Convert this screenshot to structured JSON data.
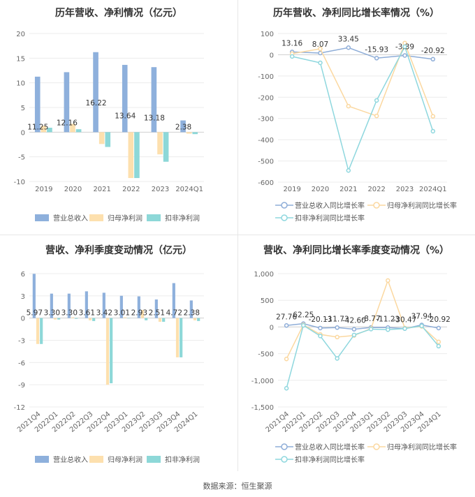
{
  "colors": {
    "revenue": "#8eb0dc",
    "net_profit": "#fde0ae",
    "deducted_profit": "#8dd8d8",
    "revenue_line": "#8eadd8",
    "net_line": "#fbd8a0",
    "deducted_line": "#8ed7de"
  },
  "footer": "数据来源：恒生聚源",
  "chart_data": [
    {
      "type": "bar",
      "title": "历年营收、净利情况（亿元）",
      "categories": [
        "2019",
        "2020",
        "2021",
        "2022",
        "2023",
        "2024Q1"
      ],
      "ylim": [
        -10,
        20
      ],
      "yticks": [
        20,
        15,
        10,
        5,
        0,
        -5,
        -10
      ],
      "grid": true,
      "legend_position": "bottom",
      "series": [
        {
          "name": "营业总收入",
          "color_key": "revenue",
          "values": [
            11.25,
            12.16,
            16.22,
            13.64,
            13.18,
            2.38
          ],
          "labels": [
            "11.25",
            "12.16",
            "16.22",
            "13.64",
            "13.18",
            "2.38"
          ]
        },
        {
          "name": "归母净利润",
          "color_key": "net_profit",
          "values": [
            1.3,
            1.7,
            -2.4,
            -9.3,
            -4.5,
            -0.3
          ]
        },
        {
          "name": "扣非净利润",
          "color_key": "deducted_profit",
          "values": [
            0.9,
            0.6,
            -3.0,
            -9.3,
            -6.0,
            -0.4
          ]
        }
      ]
    },
    {
      "type": "line",
      "title": "历年营收、净利同比增长率情况（%）",
      "categories": [
        "2019",
        "2020",
        "2021",
        "2022",
        "2023",
        "2024Q1"
      ],
      "ylim": [
        -600,
        100
      ],
      "yticks": [
        100,
        0,
        -100,
        -200,
        -300,
        -400,
        -500,
        -600
      ],
      "grid": true,
      "legend_position": "bottom",
      "series": [
        {
          "name": "营业总收入同比增长率",
          "color_key": "revenue_line",
          "values": [
            13.16,
            8.07,
            33.45,
            -15.93,
            -3.39,
            -20.92
          ],
          "labels": [
            "13.16",
            "8.07",
            "33.45",
            "-15.93",
            "-3.39",
            "-20.92"
          ]
        },
        {
          "name": "归母净利润同比增长率",
          "color_key": "net_line",
          "values": [
            5,
            28,
            -242,
            -288,
            55,
            -290
          ]
        },
        {
          "name": "扣非净利润同比增长率",
          "color_key": "deducted_line",
          "values": [
            -8,
            -38,
            -545,
            -215,
            38,
            -360
          ]
        }
      ]
    },
    {
      "type": "bar",
      "title": "营收、净利季度变动情况（亿元）",
      "categories": [
        "2021Q4",
        "2022Q1",
        "2022Q2",
        "2022Q3",
        "2022Q4",
        "2023Q1",
        "2023Q2",
        "2023Q3",
        "2023Q4",
        "2024Q1"
      ],
      "ylim": [
        -12,
        6
      ],
      "yticks": [
        6,
        3,
        0,
        -3,
        -6,
        -9,
        -12
      ],
      "grid": true,
      "legend_position": "bottom",
      "series": [
        {
          "name": "营业总收入",
          "color_key": "revenue",
          "values": [
            5.97,
            3.3,
            3.3,
            3.61,
            3.42,
            3.01,
            2.93,
            2.51,
            4.72,
            2.38
          ],
          "labels": [
            "5.97",
            "3.30",
            "3.30",
            "3.61",
            "3.42",
            "3.01",
            "2.93",
            "2.51",
            "4.72",
            "2.38"
          ]
        },
        {
          "name": "归母净利润",
          "color_key": "net_profit",
          "values": [
            -3.5,
            -0.2,
            0.1,
            -0.3,
            -9.0,
            0.1,
            1.1,
            -0.5,
            -5.3,
            -0.3
          ]
        },
        {
          "name": "扣非净利润",
          "color_key": "deducted_profit",
          "values": [
            -3.5,
            -0.2,
            -0.1,
            -0.4,
            -8.8,
            0.0,
            -0.3,
            -0.5,
            -5.3,
            -0.4
          ]
        }
      ]
    },
    {
      "type": "line",
      "title": "营收、净利同比增长率季度变动情况（%）",
      "categories": [
        "2021Q4",
        "2022Q1",
        "2022Q2",
        "2022Q3",
        "2022Q4",
        "2023Q1",
        "2023Q2",
        "2023Q3",
        "2023Q4",
        "2024Q1"
      ],
      "ylim": [
        -1500,
        1000
      ],
      "yticks": [
        1000,
        500,
        0,
        -500,
        -1000,
        -1500
      ],
      "ytick_labels": [
        "1,000",
        "500",
        "0",
        "-500",
        "-1,000",
        "-1,500"
      ],
      "grid": true,
      "legend_position": "bottom",
      "series": [
        {
          "name": "营业总收入同比增长率",
          "color_key": "revenue_line",
          "values": [
            27.76,
            62.25,
            -20.13,
            -11.73,
            -42.6,
            -8.77,
            -11.23,
            -30.47,
            37.94,
            -20.92
          ],
          "labels": [
            "27.76",
            "62.25",
            "-20.13",
            "-11.73",
            "-42.60",
            "-8.77",
            "-11.23",
            "-30.47",
            "37.94",
            "-20.92"
          ]
        },
        {
          "name": "归母净利润同比增长率",
          "color_key": "net_line",
          "values": [
            -600,
            40,
            -140,
            -190,
            -160,
            -30,
            870,
            -20,
            10,
            -280
          ]
        },
        {
          "name": "扣非净利润同比增长率",
          "color_key": "deducted_line",
          "values": [
            -1150,
            30,
            -170,
            -590,
            -150,
            -40,
            -50,
            -30,
            20,
            -360
          ]
        }
      ]
    }
  ]
}
